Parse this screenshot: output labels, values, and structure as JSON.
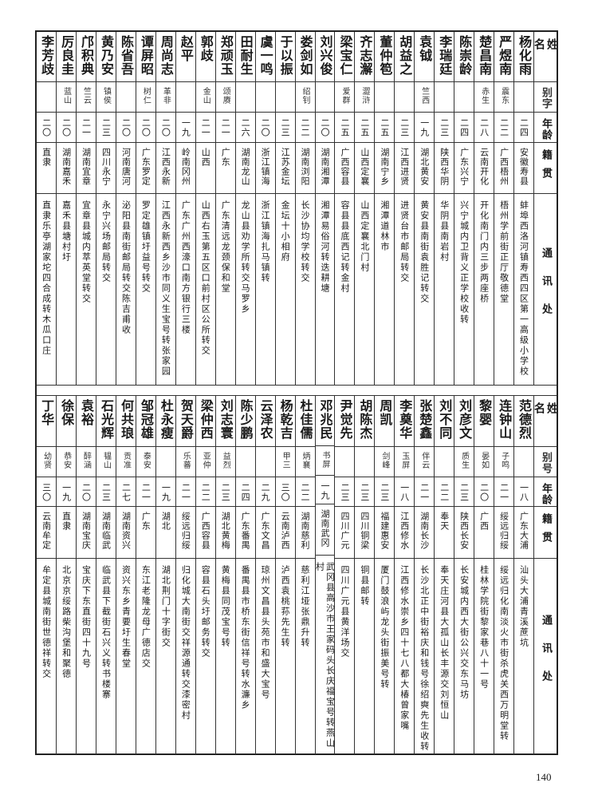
{
  "top_table": {
    "headers": {
      "name": "姓名",
      "alias": "别字",
      "age": "年龄",
      "origin": "籍贯",
      "address": "通讯处"
    },
    "rows": [
      {
        "name": "杨化雨",
        "alias": "",
        "age": "二四",
        "origin": "安徽寿县",
        "address": "蚌埠西洛河镇寿西四区第一高级小学校"
      },
      {
        "name": "严煜南",
        "alias": "震东",
        "age": "二二",
        "origin": "广西梧州",
        "address": "梧州学前街正厅敬德堂"
      },
      {
        "name": "楚昌南",
        "alias": "赤生",
        "age": "二八",
        "origin": "云南开化",
        "address": "开化南门内三步两座桥"
      },
      {
        "name": "陈崇龄",
        "alias": "",
        "age": "二四",
        "origin": "广东兴宁",
        "address": "兴宁城内卫背义正学校收转"
      },
      {
        "name": "李瑞廷",
        "alias": "",
        "age": "二三",
        "origin": "陕西华阴",
        "address": "华阴县南岩村"
      },
      {
        "name": "袁钺",
        "alias": "竺西",
        "age": "一九",
        "origin": "湖北黄安",
        "address": "黄安县南街袁胜记转交"
      },
      {
        "name": "胡益之",
        "alias": "",
        "age": "二三",
        "origin": "江西进贤",
        "address": "进贤台市邮局转交"
      },
      {
        "name": "董仲笣",
        "alias": "",
        "age": "二五",
        "origin": "湖南宁乡",
        "address": "湘潭道林市"
      },
      {
        "name": "齐志澥",
        "alias": "澀浒",
        "age": "二五",
        "origin": "山西定襄",
        "address": "山西定襄北门村"
      },
      {
        "name": "梁宝仁",
        "alias": "爱群",
        "age": "二五",
        "origin": "广西容县",
        "address": "容县县底西记转金村"
      },
      {
        "name": "刘兴俊",
        "alias": "",
        "age": "二〇",
        "origin": "湖南湘潭",
        "address": "湘潭易俗河转迭耕塘"
      },
      {
        "name": "娄剑如",
        "alias": "绍钊",
        "age": "二二",
        "origin": "湖南浏阳",
        "address": "长沙协均学校转交"
      },
      {
        "name": "于以振",
        "alias": "",
        "age": "二三",
        "origin": "江苏金坛",
        "address": "金坛十小相府"
      },
      {
        "name": "虞一鸣",
        "alias": "",
        "age": "二〇",
        "origin": "浙江镇海",
        "address": "浙江镇海扎马镇转"
      },
      {
        "name": "田耐生",
        "alias": "",
        "age": "二六",
        "origin": "湖南龙山",
        "address": "龙山县劝学所转交马罗乡"
      },
      {
        "name": "郑顽玉",
        "alias": "颂赓",
        "age": "二一",
        "origin": "广东",
        "address": "广东清远龙颈保和堂"
      },
      {
        "name": "郭歧",
        "alias": "金山",
        "age": "二一",
        "origin": "山西",
        "address": "山西右玉第五区口前村区公所转交"
      },
      {
        "name": "赵平",
        "alias": "",
        "age": "一九",
        "origin": "岭南冈州",
        "address": "广东广州西濠口南方银行三楼"
      },
      {
        "name": "周尚志",
        "alias": "革非",
        "age": "二〇",
        "origin": "江西永新",
        "address": "江西永新西乡沙市同义生宝号转张家园"
      },
      {
        "name": "谭屏昭",
        "alias": "树仁",
        "age": "二〇",
        "origin": "广东罗定",
        "address": "罗定雄镇圩益号转交"
      },
      {
        "name": "陈省吾",
        "alias": "",
        "age": "二〇",
        "origin": "河南唐河",
        "address": "泌阳县南街邮局转交陈吉甫收"
      },
      {
        "name": "黄乃安",
        "alias": "镇侯",
        "age": "二三",
        "origin": "四川永宁",
        "address": "永宁兴场邮局转交"
      },
      {
        "name": "邝积典",
        "alias": "竺云",
        "age": "二一",
        "origin": "湖南宜章",
        "address": "宜章县城内萃英堂转交"
      },
      {
        "name": "厉良圭",
        "alias": "蓝山",
        "age": "二〇",
        "origin": "湖南嘉禾",
        "address": "嘉禾县塘村圩"
      },
      {
        "name": "李芳歧",
        "alias": "",
        "age": "二〇",
        "origin": "直隶",
        "address": "直隶乐亭湖家坨四合成转木瓜口庄"
      }
    ]
  },
  "bottom_table": {
    "headers": {
      "name": "姓名",
      "alias": "别号",
      "age": "年龄",
      "origin": "籍贯",
      "address": "通讯处"
    },
    "rows": [
      {
        "name": "范德烈",
        "alias": "",
        "age": "一八",
        "origin": "广东大浦",
        "address": "汕头大浦青溪蔗坑"
      },
      {
        "name": "连钟山",
        "alias": "子鸣",
        "age": "二一",
        "origin": "绥远归绥",
        "address": "绥远归化南淡火市街杀虎关西万明堂转"
      },
      {
        "name": "黎婴",
        "alias": "晏如",
        "age": "二〇",
        "origin": "广西",
        "address": "桂林学院街黎家巷八十一号"
      },
      {
        "name": "刘彦文",
        "alias": "质生",
        "age": "二三",
        "origin": "陕西长安",
        "address": "长安城内西大街公兴交东马坊"
      },
      {
        "name": "刘不同",
        "alias": "",
        "age": "二二",
        "origin": "奉天",
        "address": "奉天庄河县大孤山长丰源交刘恒山"
      },
      {
        "name": "张楚鑫",
        "alias": "伴云",
        "age": "二一",
        "origin": "湖南长沙",
        "address": "长沙北正中街裕庆和钱号徐绍奭先生收转"
      },
      {
        "name": "李奠华",
        "alias": "玉屏",
        "age": "一八",
        "origin": "江西修水",
        "address": "江西修水崇乡四十七八都大椿曾家嘴"
      },
      {
        "name": "周凯",
        "alias": "剑峰",
        "age": "二三",
        "origin": "福建惠安",
        "address": "厦门鼓浪屿龙头街振美号转"
      },
      {
        "name": "胡陈杰",
        "alias": "",
        "age": "二三",
        "origin": "四川铜梁",
        "address": "铜县邮转"
      },
      {
        "name": "尹觉先",
        "alias": "",
        "age": "二三",
        "origin": "四川广元",
        "address": "四川广元县黄洋场交"
      },
      {
        "name": "邓兆民",
        "alias": "书屏",
        "age": "一九",
        "origin": "湖南武冈",
        "address": "武冈县高沙市王家码头长庆福宝号转燕山村"
      },
      {
        "name": "杜佳儒",
        "alias": "炳襄",
        "age": "二二",
        "origin": "湖南慈利",
        "address": "慈利江垭张鼎升转"
      },
      {
        "name": "杨乾吉",
        "alias": "甲三",
        "age": "三〇",
        "origin": "云南泸西",
        "address": "泸西袁桃荪先生转"
      },
      {
        "name": "云泽农",
        "alias": "",
        "age": "二九",
        "origin": "广东文昌",
        "address": "琼州文昌县头苑市和盛大宝号"
      },
      {
        "name": "陈少鹏",
        "alias": "",
        "age": "二四",
        "origin": "广东番禺",
        "address": "番禺县市桥东街信祥号转水濂乡"
      },
      {
        "name": "刘志寰",
        "alias": "益烈",
        "age": "二三",
        "origin": "湖北黄梅",
        "address": "黄梅县同茂宝号转"
      },
      {
        "name": "梁仲西",
        "alias": "亚仲",
        "age": "二二",
        "origin": "广西容县",
        "address": "容县石头圩邮务转交"
      },
      {
        "name": "贺天爵",
        "alias": "乐蕃",
        "age": "二一",
        "origin": "绥远归绥",
        "address": "归化城大南街交祥源通转交漆密村"
      },
      {
        "name": "杜永瘦",
        "alias": "",
        "age": "一九",
        "origin": "湖北",
        "address": "湖北荆门十字街交"
      },
      {
        "name": "邹冠雄",
        "alias": "泰安",
        "age": "二一",
        "origin": "广东",
        "address": "东江老隆龙母广德店交"
      },
      {
        "name": "何共琅",
        "alias": "贡准",
        "age": "二七",
        "origin": "湖南资兴",
        "address": "资兴东乡青要圩生春堂"
      },
      {
        "name": "石光辉",
        "alias": "韫山",
        "age": "二三",
        "origin": "湖南临武",
        "address": "临武县下截街石兴义转书楼寨"
      },
      {
        "name": "袁裕",
        "alias": "醉涵",
        "age": "二〇",
        "origin": "湖南宝庆",
        "address": "宝庆下东直街四十九号"
      },
      {
        "name": "徐保",
        "alias": "恭安",
        "age": "一九",
        "origin": "直隶",
        "address": "北京京绥路柴沟堡和聚德"
      },
      {
        "name": "丁华",
        "alias": "幼贤",
        "age": "三〇",
        "origin": "云南牟定",
        "address": "牟定县城南街世德祥转交"
      }
    ]
  },
  "page_number": "140"
}
